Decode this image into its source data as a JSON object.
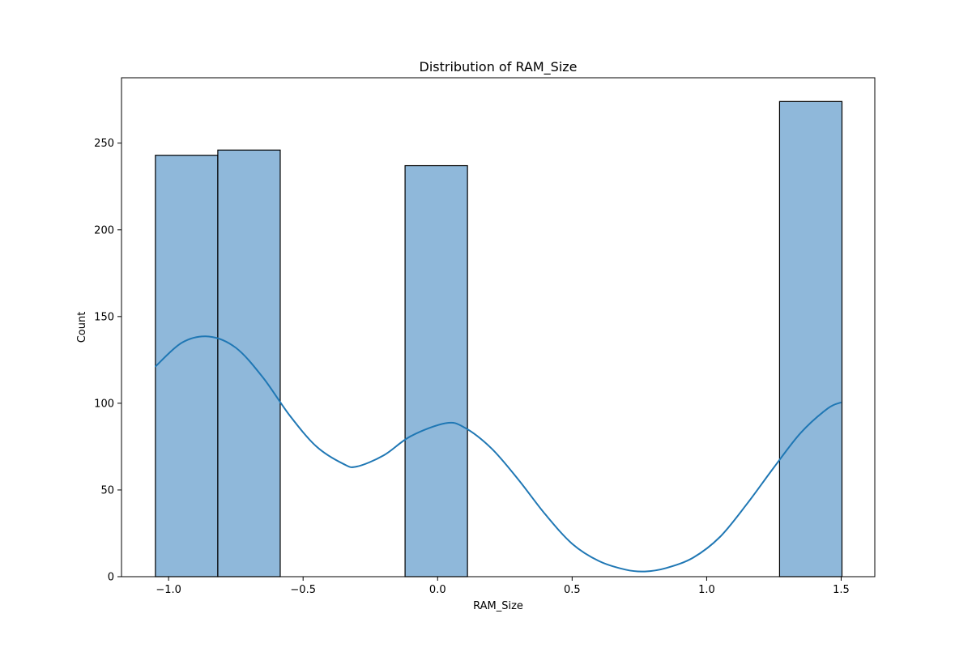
{
  "chart_data": {
    "type": "bar",
    "title": "Distribution of RAM_Size",
    "xlabel": "RAM_Size",
    "ylabel": "Count",
    "xlim": [
      -1.175,
      1.625
    ],
    "ylim": [
      0,
      287.7
    ],
    "x_ticks": [
      -1.0,
      -0.5,
      0.0,
      0.5,
      1.0,
      1.5
    ],
    "x_tick_labels": [
      "−1.0",
      "−0.5",
      "0.0",
      "0.5",
      "1.0",
      "1.5"
    ],
    "y_ticks": [
      0,
      50,
      100,
      150,
      200,
      250
    ],
    "y_tick_labels": [
      "0",
      "50",
      "100",
      "150",
      "200",
      "250"
    ],
    "grid": false,
    "bins": [
      {
        "x0": -1.049,
        "x1": -0.817,
        "count": 243
      },
      {
        "x0": -0.817,
        "x1": -0.585,
        "count": 246
      },
      {
        "x0": -0.585,
        "x1": -0.353,
        "count": 0
      },
      {
        "x0": -0.353,
        "x1": -0.121,
        "count": 0
      },
      {
        "x0": -0.121,
        "x1": 0.111,
        "count": 237
      },
      {
        "x0": 0.111,
        "x1": 0.343,
        "count": 0
      },
      {
        "x0": 0.343,
        "x1": 0.575,
        "count": 0
      },
      {
        "x0": 0.575,
        "x1": 0.807,
        "count": 0
      },
      {
        "x0": 0.807,
        "x1": 1.039,
        "count": 0
      },
      {
        "x0": 1.039,
        "x1": 1.271,
        "count": 0
      },
      {
        "x0": 1.271,
        "x1": 1.503,
        "count": 274
      }
    ],
    "kde": {
      "x": [
        -1.05,
        -0.95,
        -0.85,
        -0.75,
        -0.65,
        -0.55,
        -0.45,
        -0.35,
        -0.3,
        -0.2,
        -0.1,
        0.03,
        0.1,
        0.2,
        0.3,
        0.4,
        0.5,
        0.6,
        0.7,
        0.77,
        0.85,
        0.95,
        1.05,
        1.15,
        1.25,
        1.35,
        1.45,
        1.5
      ],
      "y": [
        121,
        135,
        138.5,
        132,
        115,
        93,
        75,
        65,
        63.5,
        70,
        81,
        88.5,
        86,
        74,
        56,
        36,
        19,
        9,
        4,
        3,
        5,
        11,
        23,
        42,
        63,
        83,
        97,
        100.5
      ]
    },
    "colors": {
      "bar_fill": "#8fb8da",
      "bar_edge": "#000000",
      "kde_line": "#1f77b4"
    }
  }
}
